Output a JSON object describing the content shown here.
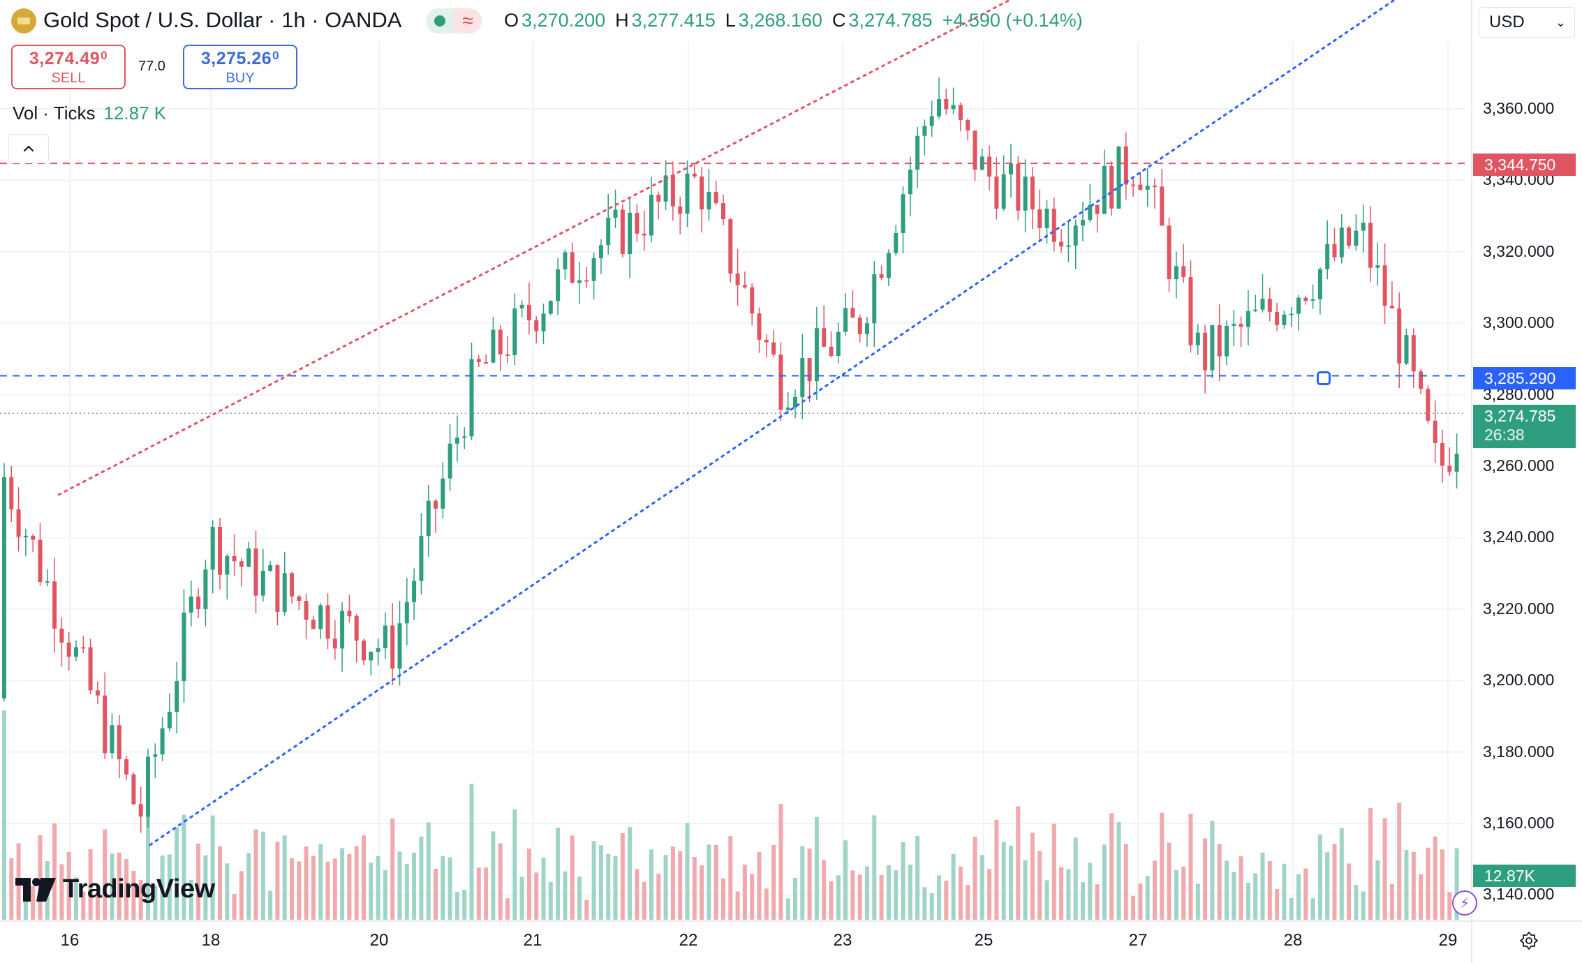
{
  "header": {
    "symbol_title": "Gold Spot / U.S. Dollar · 1h · OANDA",
    "ohlc": {
      "o_key": "O",
      "o": "3,270.200",
      "h_key": "H",
      "h": "3,277.415",
      "l_key": "L",
      "l": "3,268.160",
      "c_key": "C",
      "c": "3,274.785",
      "change": "+4.590 (+0.14%)"
    },
    "currency": "USD",
    "status_icon": "≈"
  },
  "trade": {
    "sell_price_main": "3,274.49",
    "sell_price_sup": "0",
    "sell_label": "SELL",
    "spread": "77.0",
    "buy_price_main": "3,275.26",
    "buy_price_sup": "0",
    "buy_label": "BUY"
  },
  "volume_legend": {
    "label": "Vol · Ticks",
    "value": "12.87 K"
  },
  "price_axis": {
    "ticks": [
      "3,360.000",
      "3,340.000",
      "3,320.000",
      "3,300.000",
      "3,280.000",
      "3,260.000",
      "3,240.000",
      "3,220.000",
      "3,200.000",
      "3,180.000",
      "3,160.000",
      "3,140.000"
    ],
    "red_line_label": "3,344.750",
    "blue_line_label": "3,285.290",
    "current_price_label": "3,274.785",
    "countdown": "26:38",
    "volume_label": "12.87K"
  },
  "time_axis": [
    "16",
    "18",
    "20",
    "21",
    "22",
    "23",
    "25",
    "27",
    "28",
    "29"
  ],
  "logo": {
    "text": "TradingView"
  },
  "colors": {
    "up": "#2e9e7e",
    "down": "#e05562",
    "up_vol": "#9fd4c6",
    "down_vol": "#f0a9ad",
    "red_line": "#e05562",
    "blue_line": "#2962ff",
    "accent_purple": "#8a4de0"
  },
  "chart_data": {
    "type": "candlestick",
    "interval": "1h",
    "x_axis_ticks": [
      "16",
      "18",
      "20",
      "21",
      "22",
      "23",
      "25",
      "27",
      "28",
      "29"
    ],
    "ylim": [
      3140,
      3370
    ],
    "anchors": [
      {
        "label": "16",
        "close": 3260
      },
      {
        "label": "17",
        "close": 3162
      },
      {
        "label": "18",
        "close": 3240
      },
      {
        "label": "19",
        "close": 3230
      },
      {
        "label": "20",
        "close": 3208
      },
      {
        "label": "20b",
        "close": 3285
      },
      {
        "label": "21",
        "close": 3318
      },
      {
        "label": "22",
        "close": 3340
      },
      {
        "label": "22b",
        "close": 3283
      },
      {
        "label": "23",
        "close": 3300
      },
      {
        "label": "24",
        "close": 3365
      },
      {
        "label": "25",
        "close": 3342
      },
      {
        "label": "26",
        "close": 3328
      },
      {
        "label": "27",
        "close": 3346
      },
      {
        "label": "27b",
        "close": 3290
      },
      {
        "label": "28",
        "close": 3308
      },
      {
        "label": "28b",
        "close": 3325
      },
      {
        "label": "29a",
        "close": 3292
      },
      {
        "label": "29",
        "close": 3258
      },
      {
        "label": "29c",
        "close": 3275
      }
    ],
    "horizontal_lines": [
      {
        "price": 3344.75,
        "color": "red",
        "style": "dashed"
      },
      {
        "price": 3285.29,
        "color": "blue",
        "style": "dashed"
      },
      {
        "price": 3274.785,
        "color": "gray",
        "style": "dotted"
      }
    ],
    "trend_lines": [
      {
        "color": "red",
        "style": "dotted",
        "from": {
          "time": "16",
          "price": 3252
        },
        "to": {
          "time": "22",
          "price": 3346
        }
      },
      {
        "color": "blue",
        "style": "dotted",
        "from": {
          "time": "17",
          "price": 3154
        },
        "to": {
          "time": "27",
          "price": 3345
        }
      }
    ],
    "volume_series": {
      "name": "Vol · Ticks",
      "last": "12.87K"
    },
    "last_price": 3274.785
  }
}
